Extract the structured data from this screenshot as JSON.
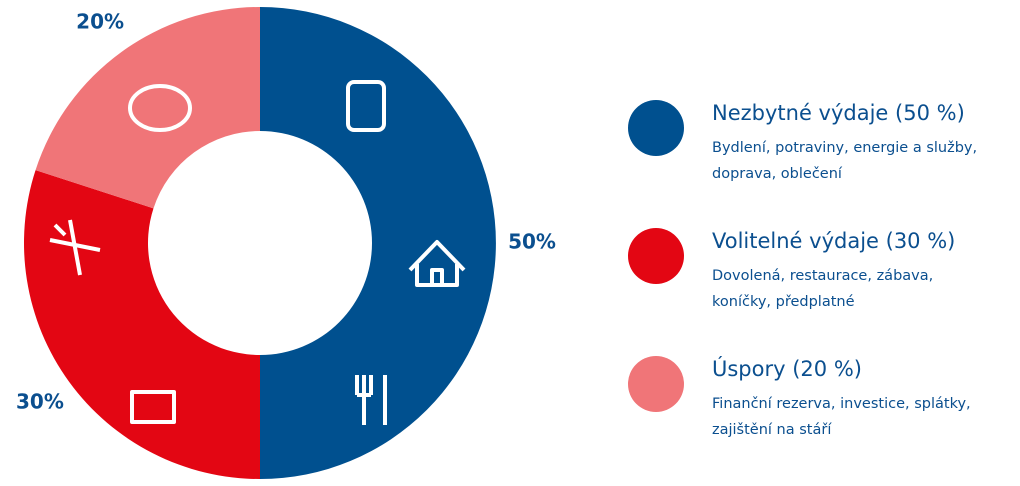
{
  "chart_data": {
    "type": "pie",
    "donut": true,
    "categories": [
      "Nezbytné výdaje (50 %)",
      "Volitelné výdaje (30 %)",
      "Úspory (20 %)"
    ],
    "values": [
      50,
      30,
      20
    ],
    "value_labels": [
      "50%",
      "30%",
      "20%"
    ],
    "colors": [
      "#00508f",
      "#e30613",
      "#f07578"
    ],
    "descriptions": [
      [
        "Bydlení, potraviny, energie a služby,",
        "doprava, oblečení"
      ],
      [
        "Dovolená, restaurace, zábava,",
        "koníčky, předplatné"
      ],
      [
        "Finanční rezerva, investice, splátky,",
        "zajištění na stáří"
      ]
    ],
    "legend": "right"
  }
}
